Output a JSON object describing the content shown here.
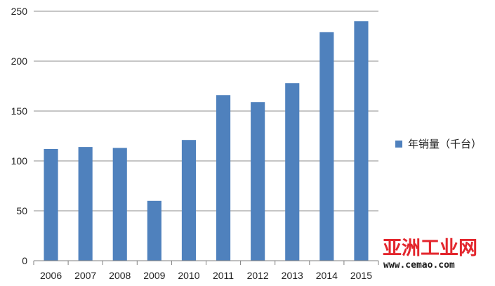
{
  "chart_data": {
    "type": "bar",
    "categories": [
      "2006",
      "2007",
      "2008",
      "2009",
      "2010",
      "2011",
      "2012",
      "2013",
      "2014",
      "2015"
    ],
    "series": [
      {
        "name": "年销量（千台）",
        "values": [
          112,
          114,
          113,
          60,
          121,
          166,
          159,
          178,
          229,
          240
        ],
        "color": "#4f81bd"
      }
    ],
    "title": "",
    "xlabel": "",
    "ylabel": "",
    "ylim": [
      0,
      250
    ],
    "yticks": [
      "0",
      "50",
      "100",
      "150",
      "200",
      "250"
    ],
    "grid": true,
    "legend_position": "right"
  },
  "watermark": {
    "brand": "亚洲工业网",
    "url": "www.cemao.com"
  }
}
